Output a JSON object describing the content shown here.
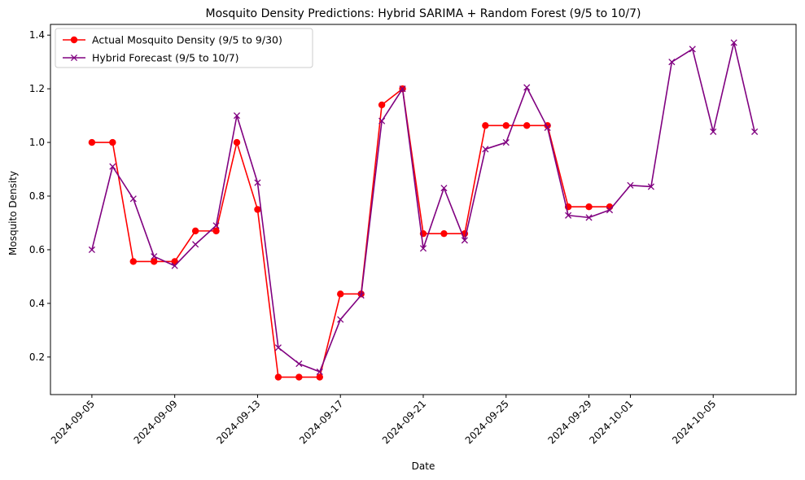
{
  "chart_data": {
    "type": "line",
    "title": "Mosquito Density Predictions: Hybrid SARIMA + Random Forest (9/5 to 10/7)",
    "xlabel": "Date",
    "ylabel": "Mosquito Density",
    "x_range": [
      "2024-09-03",
      "2024-10-09"
    ],
    "ylim": [
      0.06,
      1.44
    ],
    "grid": false,
    "legend": "upper-left",
    "x_ticks": [
      "2024-09-05",
      "2024-09-09",
      "2024-09-13",
      "2024-09-17",
      "2024-09-21",
      "2024-09-25",
      "2024-09-29",
      "2024-10-01",
      "2024-10-05"
    ],
    "y_ticks": [
      "0.2",
      "0.4",
      "0.6",
      "0.8",
      "1.0",
      "1.2",
      "1.4"
    ],
    "series": [
      {
        "name": "Actual Mosquito Density (9/5 to 9/30)",
        "color": "#ff0000",
        "marker": "circle",
        "x": [
          "2024-09-05",
          "2024-09-06",
          "2024-09-07",
          "2024-09-08",
          "2024-09-09",
          "2024-09-10",
          "2024-09-11",
          "2024-09-12",
          "2024-09-13",
          "2024-09-14",
          "2024-09-15",
          "2024-09-16",
          "2024-09-17",
          "2024-09-18",
          "2024-09-19",
          "2024-09-20",
          "2024-09-21",
          "2024-09-22",
          "2024-09-23",
          "2024-09-24",
          "2024-09-25",
          "2024-09-26",
          "2024-09-27",
          "2024-09-28",
          "2024-09-29",
          "2024-09-30"
        ],
        "values": [
          1.0,
          1.0,
          0.556,
          0.556,
          0.556,
          0.67,
          0.67,
          1.0,
          0.75,
          0.125,
          0.125,
          0.125,
          0.435,
          0.435,
          1.14,
          1.2,
          0.66,
          0.66,
          0.66,
          1.063,
          1.063,
          1.063,
          1.063,
          0.76,
          0.76,
          0.76
        ]
      },
      {
        "name": "Hybrid Forecast (9/5 to 10/7)",
        "color": "#800080",
        "marker": "x",
        "x": [
          "2024-09-05",
          "2024-09-06",
          "2024-09-07",
          "2024-09-08",
          "2024-09-09",
          "2024-09-10",
          "2024-09-11",
          "2024-09-12",
          "2024-09-13",
          "2024-09-14",
          "2024-09-15",
          "2024-09-16",
          "2024-09-17",
          "2024-09-18",
          "2024-09-19",
          "2024-09-20",
          "2024-09-21",
          "2024-09-22",
          "2024-09-23",
          "2024-09-24",
          "2024-09-25",
          "2024-09-26",
          "2024-09-27",
          "2024-09-28",
          "2024-09-29",
          "2024-09-30",
          "2024-10-01",
          "2024-10-02",
          "2024-10-03",
          "2024-10-04",
          "2024-10-05",
          "2024-10-06",
          "2024-10-07"
        ],
        "values": [
          0.6,
          0.91,
          0.79,
          0.575,
          0.54,
          0.62,
          0.69,
          1.1,
          0.85,
          0.235,
          0.175,
          0.145,
          0.34,
          0.43,
          1.08,
          1.2,
          0.605,
          0.83,
          0.635,
          0.975,
          1.0,
          1.205,
          1.055,
          0.728,
          0.72,
          0.748,
          0.84,
          0.835,
          1.3,
          1.348,
          1.04,
          1.372,
          1.04
        ]
      }
    ]
  }
}
